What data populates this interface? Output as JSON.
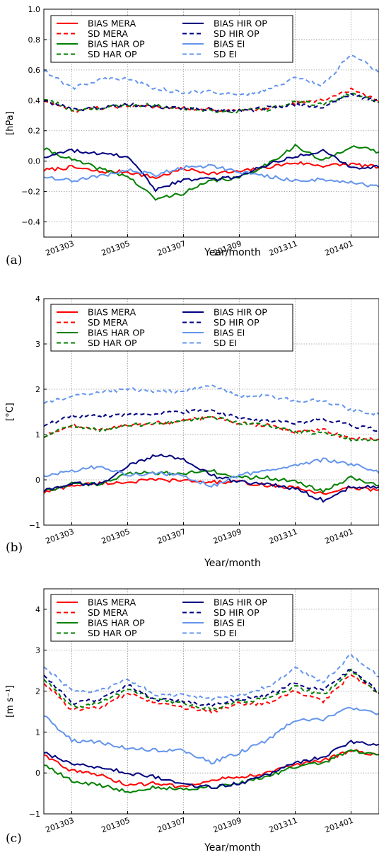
{
  "chart_data": [
    {
      "panel_label": "(a)",
      "type": "line",
      "xlabel": "Year/month",
      "ylabel": "[hPa]",
      "ylim": [
        -0.5,
        1.0
      ],
      "xlim": [
        "201302",
        "201402"
      ],
      "ytick_labels": [
        "1.0",
        "0.8",
        "0.6",
        "0.4",
        "0.2",
        "0.0",
        "−0.2",
        "−0.4"
      ],
      "yticks": [
        1.0,
        0.8,
        0.6,
        0.4,
        0.2,
        0.0,
        -0.2,
        -0.4
      ],
      "xtick_labels": [
        "201303",
        "201305",
        "201307",
        "201309",
        "201311",
        "201401"
      ],
      "grid": true,
      "legend": "top-left, 2 columns",
      "x": [
        "201302",
        "201303",
        "201304",
        "201305",
        "201306",
        "201307",
        "201308",
        "201309",
        "201310",
        "201311",
        "201312",
        "201401",
        "201402"
      ],
      "series": [
        {
          "name": "BIAS MERA",
          "color": "#ff0000",
          "dash": "solid",
          "values": [
            -0.06,
            -0.04,
            -0.07,
            -0.07,
            -0.11,
            -0.05,
            -0.08,
            -0.07,
            -0.04,
            -0.01,
            -0.03,
            -0.02,
            -0.04
          ]
        },
        {
          "name": "SD MERA",
          "color": "#ff0000",
          "dash": "dashed",
          "values": [
            0.4,
            0.33,
            0.35,
            0.36,
            0.36,
            0.35,
            0.34,
            0.33,
            0.35,
            0.38,
            0.4,
            0.47,
            0.4
          ]
        },
        {
          "name": "BIAS HAR OP",
          "color": "#008000",
          "dash": "solid",
          "values": [
            0.08,
            0.01,
            -0.05,
            -0.1,
            -0.25,
            -0.21,
            -0.13,
            -0.11,
            -0.02,
            0.1,
            0.0,
            0.1,
            0.06
          ]
        },
        {
          "name": "SD HAR OP",
          "color": "#008000",
          "dash": "dashed",
          "values": [
            0.41,
            0.34,
            0.35,
            0.37,
            0.37,
            0.35,
            0.33,
            0.33,
            0.34,
            0.39,
            0.37,
            0.45,
            0.39
          ]
        },
        {
          "name": "BIAS HIR OP",
          "color": "#000080",
          "dash": "solid",
          "values": [
            0.03,
            0.07,
            0.05,
            0.03,
            -0.19,
            -0.12,
            -0.12,
            -0.1,
            -0.02,
            0.03,
            0.07,
            -0.04,
            -0.04
          ]
        },
        {
          "name": "SD HIR OP",
          "color": "#000080",
          "dash": "dashed",
          "values": [
            0.4,
            0.34,
            0.35,
            0.37,
            0.36,
            0.35,
            0.34,
            0.33,
            0.35,
            0.37,
            0.36,
            0.44,
            0.39
          ]
        },
        {
          "name": "BIAS EI",
          "color": "#6495ed",
          "dash": "solid",
          "values": [
            -0.1,
            -0.13,
            -0.1,
            -0.06,
            -0.09,
            -0.04,
            -0.03,
            -0.07,
            -0.1,
            -0.13,
            -0.12,
            -0.14,
            -0.17
          ]
        },
        {
          "name": "SD EI",
          "color": "#6495ed",
          "dash": "dashed",
          "values": [
            0.6,
            0.48,
            0.54,
            0.54,
            0.48,
            0.45,
            0.46,
            0.43,
            0.47,
            0.55,
            0.5,
            0.71,
            0.58
          ]
        }
      ]
    },
    {
      "panel_label": "(b)",
      "type": "line",
      "xlabel": "Year/month",
      "ylabel": "[°C]",
      "ylim": [
        -1,
        4
      ],
      "xlim": [
        "201302",
        "201402"
      ],
      "ytick_labels": [
        "4",
        "3",
        "2",
        "1",
        "0",
        "−1"
      ],
      "yticks": [
        4,
        3,
        2,
        1,
        0,
        -1
      ],
      "xtick_labels": [
        "201303",
        "201305",
        "201307",
        "201309",
        "201311",
        "201401"
      ],
      "grid": true,
      "legend": "top-left, 2 columns",
      "x": [
        "201302",
        "201303",
        "201304",
        "201305",
        "201306",
        "201307",
        "201308",
        "201309",
        "201310",
        "201311",
        "201312",
        "201401",
        "201402"
      ],
      "series": [
        {
          "name": "BIAS MERA",
          "color": "#ff0000",
          "dash": "solid",
          "values": [
            -0.28,
            -0.12,
            -0.08,
            -0.05,
            0.0,
            -0.02,
            -0.05,
            -0.05,
            -0.12,
            -0.18,
            -0.3,
            -0.18,
            -0.22
          ]
        },
        {
          "name": "SD MERA",
          "color": "#ff0000",
          "dash": "dashed",
          "values": [
            0.95,
            1.2,
            1.1,
            1.2,
            1.25,
            1.3,
            1.4,
            1.25,
            1.2,
            1.05,
            1.1,
            0.9,
            0.9
          ]
        },
        {
          "name": "BIAS HAR OP",
          "color": "#008000",
          "dash": "solid",
          "values": [
            -0.25,
            -0.08,
            -0.1,
            0.15,
            0.15,
            0.15,
            0.2,
            0.05,
            0.05,
            -0.05,
            -0.25,
            0.05,
            -0.12
          ]
        },
        {
          "name": "SD HAR OP",
          "color": "#008000",
          "dash": "dashed",
          "values": [
            0.95,
            1.2,
            1.1,
            1.2,
            1.25,
            1.3,
            1.4,
            1.25,
            1.2,
            1.05,
            1.05,
            0.9,
            0.9
          ]
        },
        {
          "name": "BIAS HIR OP",
          "color": "#000080",
          "dash": "solid",
          "values": [
            -0.25,
            -0.08,
            -0.1,
            0.3,
            0.55,
            0.45,
            0.1,
            -0.05,
            -0.1,
            -0.2,
            -0.45,
            -0.15,
            -0.15
          ]
        },
        {
          "name": "SD HIR OP",
          "color": "#000080",
          "dash": "dashed",
          "values": [
            1.2,
            1.4,
            1.4,
            1.45,
            1.45,
            1.5,
            1.55,
            1.35,
            1.3,
            1.25,
            1.35,
            1.2,
            1.1
          ]
        },
        {
          "name": "BIAS EI",
          "color": "#6495ed",
          "dash": "solid",
          "values": [
            0.1,
            0.2,
            0.3,
            0.1,
            0.15,
            0.1,
            -0.15,
            0.1,
            0.2,
            0.3,
            0.45,
            0.35,
            0.15
          ]
        },
        {
          "name": "SD EI",
          "color": "#6495ed",
          "dash": "dashed",
          "values": [
            1.7,
            1.85,
            1.95,
            2.0,
            1.95,
            1.95,
            2.1,
            1.85,
            1.85,
            1.75,
            1.75,
            1.55,
            1.45
          ]
        }
      ]
    },
    {
      "panel_label": "(c)",
      "type": "line",
      "xlabel": "Year/month",
      "ylabel": "[m s⁻¹]",
      "ylim": [
        -1,
        4.5
      ],
      "xlim": [
        "201302",
        "201402"
      ],
      "ytick_labels": [
        "4",
        "3",
        "2",
        "1",
        "0",
        "−1"
      ],
      "yticks": [
        4,
        3,
        2,
        1,
        0,
        -1
      ],
      "xtick_labels": [
        "201303",
        "201305",
        "201307",
        "201309",
        "201311",
        "201401"
      ],
      "grid": true,
      "legend": "top-left, 2 columns",
      "x": [
        "201302",
        "201303",
        "201304",
        "201305",
        "201306",
        "201307",
        "201308",
        "201309",
        "201310",
        "201311",
        "201312",
        "201401",
        "201402"
      ],
      "series": [
        {
          "name": "BIAS MERA",
          "color": "#ff0000",
          "dash": "solid",
          "values": [
            0.45,
            0.05,
            -0.05,
            -0.3,
            -0.25,
            -0.35,
            -0.15,
            -0.1,
            0.0,
            0.2,
            0.3,
            0.55,
            0.45
          ]
        },
        {
          "name": "SD MERA",
          "color": "#ff0000",
          "dash": "dashed",
          "values": [
            2.2,
            1.55,
            1.6,
            1.95,
            1.7,
            1.6,
            1.5,
            1.7,
            1.7,
            2.0,
            1.75,
            2.4,
            1.95
          ]
        },
        {
          "name": "BIAS HAR OP",
          "color": "#008000",
          "dash": "solid",
          "values": [
            0.2,
            -0.2,
            -0.3,
            -0.45,
            -0.35,
            -0.4,
            -0.35,
            -0.25,
            -0.1,
            0.15,
            0.25,
            0.55,
            0.45
          ]
        },
        {
          "name": "SD HAR OP",
          "color": "#008000",
          "dash": "dashed",
          "values": [
            2.3,
            1.6,
            1.7,
            2.05,
            1.8,
            1.7,
            1.55,
            1.75,
            1.8,
            2.1,
            1.9,
            2.5,
            1.95
          ]
        },
        {
          "name": "BIAS HIR OP",
          "color": "#000080",
          "dash": "solid",
          "values": [
            0.5,
            0.2,
            0.15,
            0.0,
            -0.1,
            -0.3,
            -0.35,
            -0.25,
            -0.05,
            0.25,
            0.4,
            0.75,
            0.7
          ]
        },
        {
          "name": "SD HIR OP",
          "color": "#000080",
          "dash": "dashed",
          "values": [
            2.4,
            1.7,
            1.8,
            2.15,
            1.8,
            1.75,
            1.65,
            1.8,
            1.9,
            2.2,
            2.0,
            2.55,
            1.95
          ]
        },
        {
          "name": "BIAS EI",
          "color": "#6495ed",
          "dash": "solid",
          "values": [
            1.4,
            0.8,
            0.75,
            0.6,
            0.55,
            0.55,
            0.25,
            0.5,
            0.8,
            1.3,
            1.3,
            1.6,
            1.45
          ]
        },
        {
          "name": "SD EI",
          "color": "#6495ed",
          "dash": "dashed",
          "values": [
            2.6,
            2.0,
            2.0,
            2.3,
            1.9,
            1.9,
            1.8,
            1.9,
            2.1,
            2.55,
            2.2,
            2.9,
            2.35
          ]
        }
      ]
    }
  ]
}
